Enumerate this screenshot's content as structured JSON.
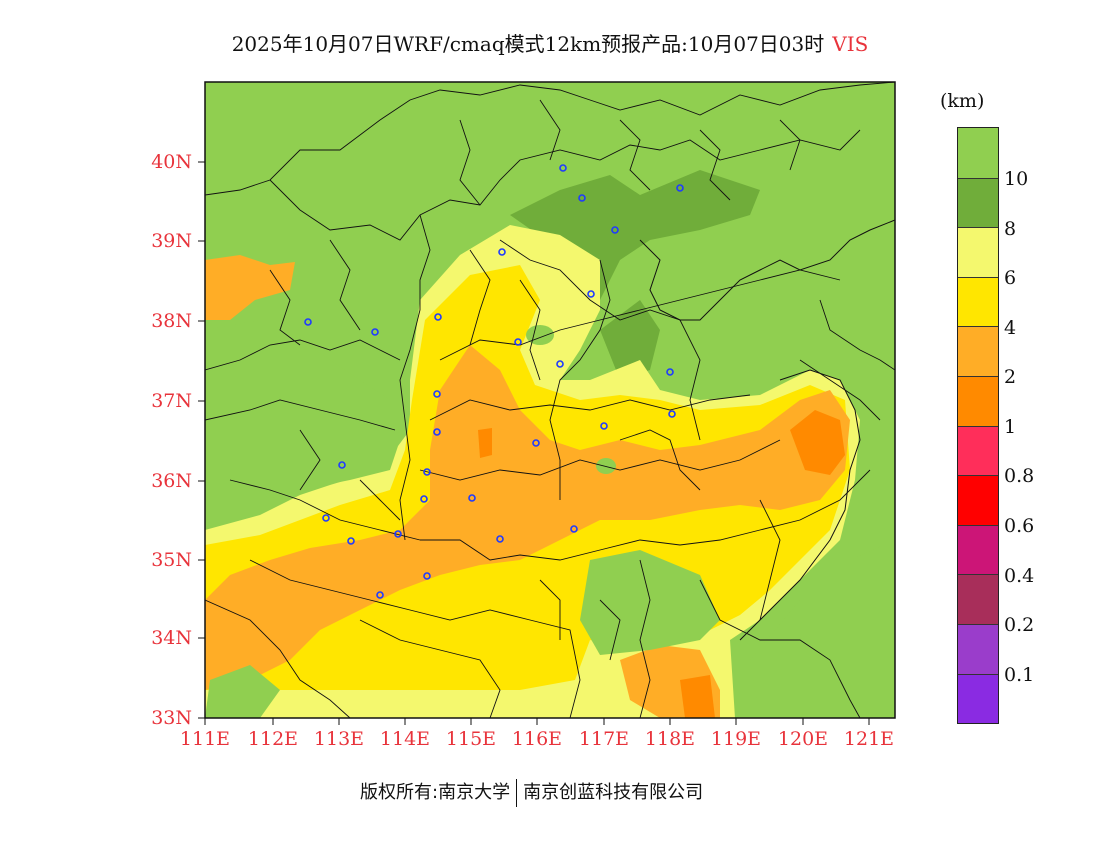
{
  "header": {
    "title": "2025年10月07日WRF/cmaq模式12km预报产品:10月07日03时",
    "variable": "VIS"
  },
  "axes": {
    "lat_labels": [
      "40N",
      "39N",
      "38N",
      "37N",
      "36N",
      "35N",
      "34N",
      "33N"
    ],
    "lon_labels": [
      "111E",
      "112E",
      "113E",
      "114E",
      "115E",
      "116E",
      "117E",
      "118E",
      "119E",
      "120E",
      "121E"
    ]
  },
  "legend": {
    "unit": "(km)",
    "labels": [
      "10",
      "8",
      "6",
      "4",
      "2",
      "1",
      "0.8",
      "0.6",
      "0.4",
      "0.2",
      "0.1"
    ],
    "colors": [
      "#90cf50",
      "#70ad3a",
      "#f4f86e",
      "#ffe600",
      "#ffad26",
      "#ff8a00",
      "#ff2e5a",
      "#ff0000",
      "#cc1577",
      "#a82e5a",
      "#9a3dcb",
      "#8a2be2"
    ]
  },
  "footer": {
    "owner": "版权所有:南京大学",
    "company": "南京创蓝科技有限公司"
  }
}
